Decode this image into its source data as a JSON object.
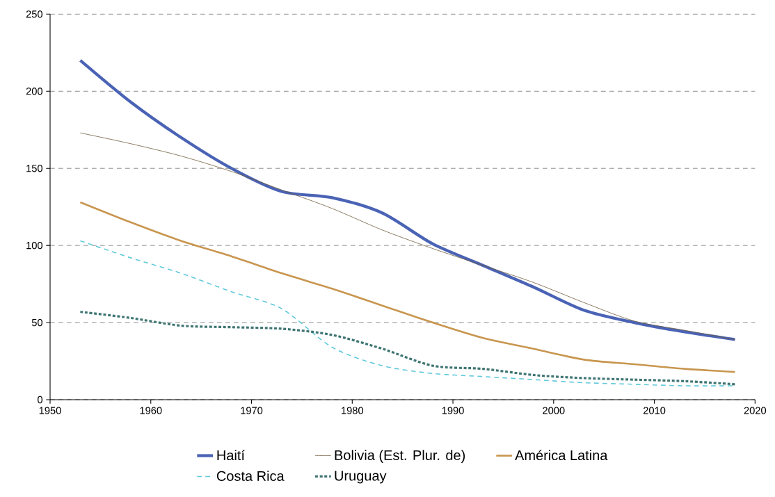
{
  "chart_data": {
    "type": "line",
    "x": [
      1953,
      1958,
      1963,
      1968,
      1973,
      1978,
      1983,
      1988,
      1993,
      1998,
      2003,
      2008,
      2013,
      2018
    ],
    "series": [
      {
        "name": "Haití",
        "color": "#4a63b5",
        "line_style": "solid",
        "values": [
          220,
          193,
          170,
          150,
          135,
          131,
          121,
          101,
          87,
          73,
          58,
          50,
          44,
          39
        ]
      },
      {
        "name": "Bolivia (Est. Plur. de)",
        "color": "#6e5a3c",
        "line_style": "solid",
        "values": [
          173,
          166,
          158,
          148,
          136,
          124,
          110,
          98,
          87,
          76,
          63,
          51,
          45,
          39
        ]
      },
      {
        "name": "América Latina",
        "color": "#c8964f",
        "line_style": "solid",
        "values": [
          128,
          115,
          103,
          93,
          82,
          72,
          61,
          50,
          40,
          33,
          26,
          23,
          20,
          18
        ]
      },
      {
        "name": "Costa Rica",
        "color": "#62c9dc",
        "line_style": "dashed",
        "values": [
          103,
          92,
          82,
          70,
          59,
          34,
          22,
          17,
          15,
          13,
          11,
          10,
          9,
          9
        ]
      },
      {
        "name": "Uruguay",
        "color": "#3e7573",
        "line_style": "dotted",
        "values": [
          57,
          53,
          48,
          47,
          46,
          42,
          33,
          22,
          20,
          16,
          14,
          13,
          12,
          10
        ]
      }
    ],
    "xlim": [
      1950,
      2020
    ],
    "xticks": [
      1950,
      1960,
      1970,
      1980,
      1990,
      2000,
      2010,
      2020
    ],
    "ylim": [
      0,
      250
    ],
    "yticks": [
      0,
      50,
      100,
      150,
      200,
      250
    ],
    "grid": "y",
    "legend": "bottom"
  }
}
